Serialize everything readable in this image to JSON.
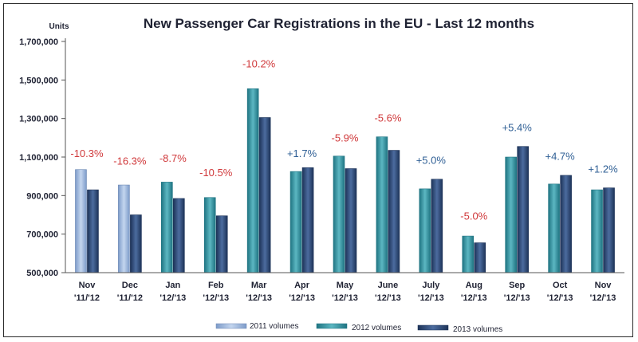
{
  "chart_data": {
    "type": "bar",
    "title": "New Passenger Car Registrations in the EU - Last 12 months",
    "ylabel": "Units",
    "ylim": [
      500000,
      1700000
    ],
    "yticks": [
      "500,000",
      "700,000",
      "900,000",
      "1,100,000",
      "1,300,000",
      "1,500,000",
      "1,700,000"
    ],
    "categories": [
      [
        "Nov",
        "'11/'12"
      ],
      [
        "Dec",
        "'11/'12"
      ],
      [
        "Jan",
        "'12/'13"
      ],
      [
        "Feb",
        "'12/'13"
      ],
      [
        "Mar",
        "'12/'13"
      ],
      [
        "Apr",
        "'12/'13"
      ],
      [
        "May",
        "'12/'13"
      ],
      [
        "June",
        "'12/'13"
      ],
      [
        "July",
        "'12/'13"
      ],
      [
        "Aug",
        "'12/'13"
      ],
      [
        "Sep",
        "'12/'13"
      ],
      [
        "Oct",
        "'12/'13"
      ],
      [
        "Nov",
        "'12/'13"
      ]
    ],
    "series": [
      {
        "name": "2011 volumes",
        "color": "#98b4dc",
        "values": [
          1035000,
          955000,
          null,
          null,
          null,
          null,
          null,
          null,
          null,
          null,
          null,
          null,
          null
        ]
      },
      {
        "name": "2012 volumes",
        "color": "#2f8f9b",
        "values": [
          null,
          null,
          970000,
          890000,
          1455000,
          1025000,
          1105000,
          1205000,
          935000,
          690000,
          1100000,
          960000,
          930000
        ]
      },
      {
        "name": "2013 volumes",
        "color": "#2d4a78",
        "values": [
          930000,
          800000,
          885000,
          795000,
          1305000,
          1045000,
          1040000,
          1135000,
          985000,
          655000,
          1155000,
          1005000,
          940000
        ]
      }
    ],
    "change_labels": [
      "-10.3%",
      "-16.3%",
      "-8.7%",
      "-10.5%",
      "-10.2%",
      "+1.7%",
      "-5.9%",
      "-5.6%",
      "+5.0%",
      "-5.0%",
      "+5.4%",
      "+4.7%",
      "+1.2%"
    ],
    "change_label_values": [
      1100000,
      1060000,
      1075000,
      1000000,
      1565000,
      1100000,
      1180000,
      1285000,
      1065000,
      775000,
      1235000,
      1085000,
      1020000
    ],
    "negative_color": "#d0393b",
    "positive_color": "#2f5f95",
    "grid": false,
    "legend_position": "bottom"
  }
}
